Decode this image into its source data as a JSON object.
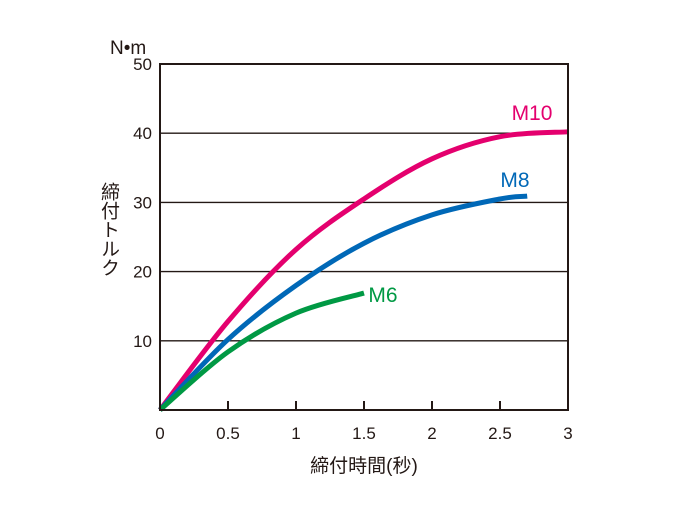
{
  "chart_data": {
    "type": "line",
    "title": "",
    "xlabel": "締付時間(秒)",
    "ylabel": "締付トルク",
    "yunit": "N•m",
    "xlim": [
      0,
      3
    ],
    "ylim": [
      0,
      50
    ],
    "xticks": [
      "0",
      "0.5",
      "1",
      "1.5",
      "2",
      "2.5",
      "3"
    ],
    "xtick_values": [
      0,
      0.5,
      1,
      1.5,
      2,
      2.5,
      3
    ],
    "yticks": [
      "10",
      "20",
      "30",
      "40",
      "50"
    ],
    "ytick_values": [
      10,
      20,
      30,
      40,
      50
    ],
    "grid": "horizontal",
    "series": [
      {
        "name": "M10",
        "color": "#e4006e",
        "x": [
          0,
          0.5,
          1,
          1.5,
          2,
          2.5,
          3
        ],
        "y": [
          0,
          12.8,
          23.2,
          30.5,
          36.3,
          39.5,
          40.2
        ]
      },
      {
        "name": "M8",
        "color": "#0068b7",
        "x": [
          0,
          0.5,
          1,
          1.5,
          2,
          2.5,
          2.7
        ],
        "y": [
          0,
          10.2,
          18.0,
          24.1,
          28.2,
          30.5,
          30.9
        ]
      },
      {
        "name": "M6",
        "color": "#009944",
        "x": [
          0,
          0.5,
          1,
          1.5
        ],
        "y": [
          0,
          8.4,
          14.0,
          16.9
        ]
      }
    ]
  }
}
